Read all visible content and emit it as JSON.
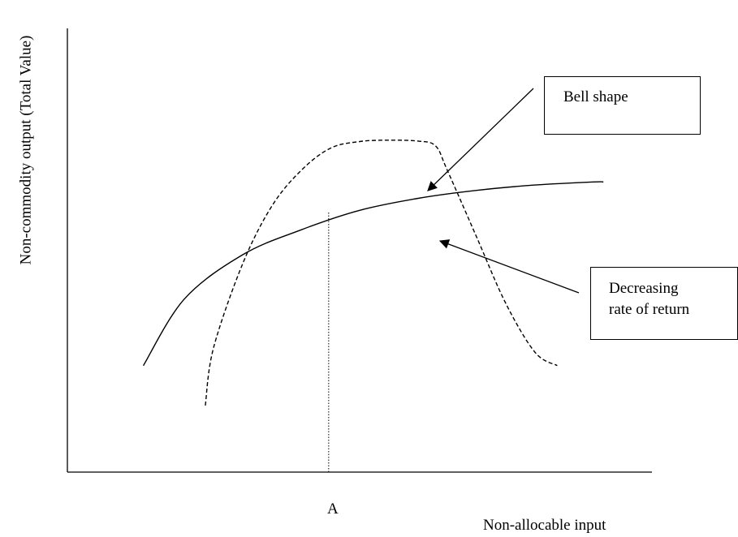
{
  "chart_data": {
    "type": "line",
    "xlabel": "Non-allocable input",
    "ylabel": "Non-commodity output (Total Value)",
    "x_ticks": [
      "A"
    ],
    "grid": false,
    "legend": "none",
    "series": [
      {
        "style": "solid",
        "x": [
          0.13,
          0.2,
          0.3,
          0.4,
          0.5,
          0.6,
          0.7,
          0.8,
          0.9,
          0.917
        ],
        "y": [
          0.24,
          0.39,
          0.49,
          0.546,
          0.59,
          0.617,
          0.635,
          0.647,
          0.654,
          0.654
        ]
      },
      {
        "style": "dashed",
        "x": [
          0.236,
          0.25,
          0.3,
          0.35,
          0.4,
          0.45,
          0.5,
          0.55,
          0.6,
          0.63,
          0.65,
          0.7,
          0.75,
          0.8,
          0.838
        ],
        "y": [
          0.15,
          0.28,
          0.47,
          0.6,
          0.68,
          0.73,
          0.745,
          0.748,
          0.746,
          0.735,
          0.68,
          0.53,
          0.38,
          0.27,
          0.24
        ]
      }
    ],
    "markers": [
      {
        "type": "vline",
        "x": 0.447,
        "style": "dotted",
        "label": "A"
      }
    ],
    "annotations": [
      {
        "text_lines": [
          "Bell shape"
        ],
        "target_series": 1
      },
      {
        "text_lines": [
          "Decreasing",
          "rate of return"
        ],
        "target_series": 0
      }
    ]
  }
}
